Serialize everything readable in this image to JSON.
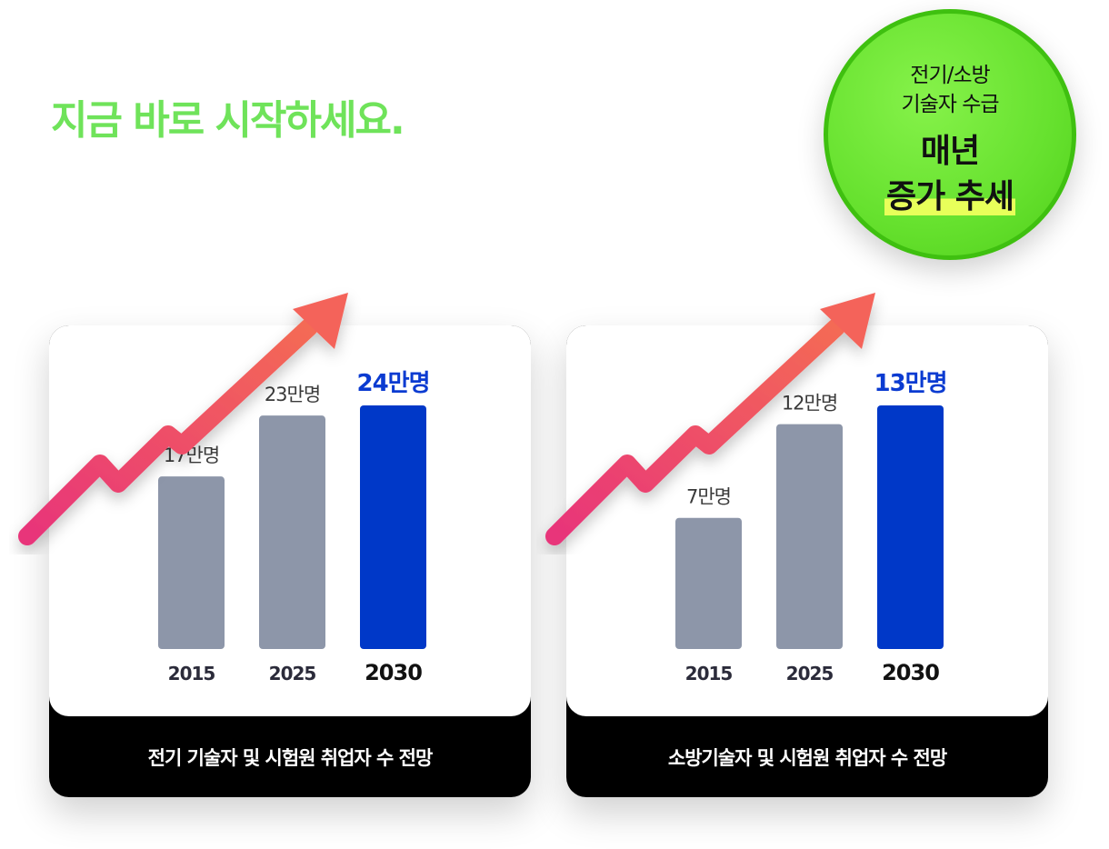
{
  "headline": "지금 바로 시작하세요.",
  "badge": {
    "line1": "전기/소방",
    "line2": "기술자 수급",
    "line3": "매년",
    "line4": "증가 추세",
    "bg_color": "#66e12e",
    "highlight_color": "#e8ff5a"
  },
  "colors": {
    "bar_past": "#8d96a9",
    "bar_highlight": "#0038c8",
    "label_past": "#3a3a3a",
    "label_highlight": "#0b3bd1",
    "arrow": "#f2546a"
  },
  "chart_data": [
    {
      "type": "bar",
      "title": "전기 기술자 및 시험원 취업자 수 전망",
      "categories": [
        "2015",
        "2025",
        "2030"
      ],
      "values": [
        17,
        23,
        24
      ],
      "data_labels": [
        "17만명",
        "23만명",
        "24만명"
      ],
      "highlight_index": 2,
      "ylim": [
        0,
        24
      ]
    },
    {
      "type": "bar",
      "title": "소방기술자 및 시험원 취업자 수 전망",
      "categories": [
        "2015",
        "2025",
        "2030"
      ],
      "values": [
        7,
        12,
        13
      ],
      "data_labels": [
        "7만명",
        "12만명",
        "13만명"
      ],
      "highlight_index": 2,
      "ylim": [
        0,
        13
      ]
    }
  ]
}
